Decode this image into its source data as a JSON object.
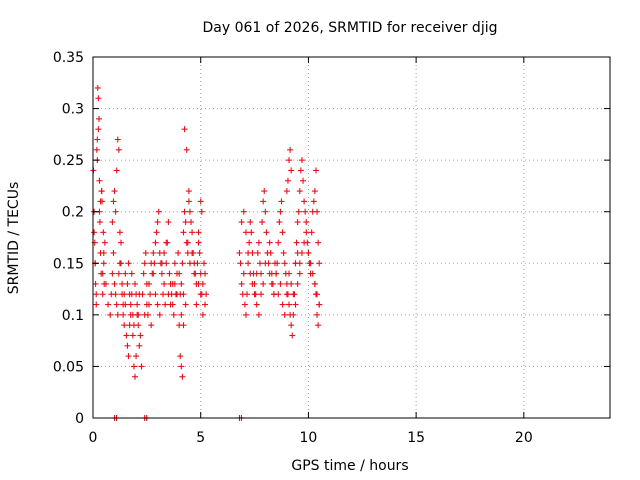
{
  "chart_data": {
    "type": "scatter",
    "title": "Day 061 of 2026, SRMTID for receiver djig",
    "xlabel": "GPS time / hours",
    "ylabel": "SRMTID / TECUs",
    "xlim": [
      0,
      24
    ],
    "ylim": [
      0,
      0.35
    ],
    "x_ticks": [
      0,
      5,
      10,
      15,
      20
    ],
    "y_ticks": [
      0,
      0.05,
      0.1,
      0.15,
      0.2,
      0.25,
      0.3,
      0.35
    ],
    "x_tick_labels": [
      "0",
      "5",
      "10",
      "15",
      "20"
    ],
    "y_tick_labels": [
      "0",
      "0.05",
      "0.1",
      "0.15",
      "0.2",
      "0.25",
      "0.3",
      "0.35"
    ],
    "grid": true,
    "marker": "plus",
    "color": "#e8101a",
    "series": [
      {
        "x": [
          0.02,
          0.05,
          0.08,
          0.1,
          0.12,
          0.15,
          0.18,
          0.2,
          0.22,
          0.25,
          0.28,
          0.3,
          0.32,
          0.35,
          0.38,
          0.4,
          0.42,
          0.45,
          0.48,
          0.5,
          0.52,
          0.55,
          0.05,
          0.1,
          0.15,
          0.2,
          0.25,
          0.3,
          0.35,
          0.4,
          0.45,
          0.5,
          0.6,
          0.7,
          0.8,
          0.85,
          0.9,
          0.95,
          1.0,
          1.05,
          1.1,
          1.15,
          1.2,
          1.25,
          1.3,
          1.35,
          1.4,
          1.45,
          1.5,
          0.9,
          0.95,
          1.0,
          1.05,
          1.1,
          1.15,
          1.2,
          1.25,
          1.3,
          1.35,
          1.4,
          1.45,
          1.5,
          1.55,
          1.6,
          1.65,
          1.7,
          1.75,
          1.8,
          1.85,
          1.9,
          1.95,
          2.0,
          2.05,
          2.1,
          2.15,
          2.2,
          2.25,
          1.6,
          1.65,
          1.7,
          1.75,
          1.8,
          1.85,
          1.9,
          1.95,
          2.0,
          2.05,
          2.1,
          2.15,
          2.3,
          2.35,
          2.4,
          2.45,
          2.5,
          2.55,
          2.6,
          2.65,
          2.7,
          2.75,
          2.8,
          2.85,
          2.9,
          2.95,
          3.0,
          3.05,
          3.1,
          3.15,
          3.2,
          3.25,
          3.3,
          3.35,
          3.4,
          3.45,
          3.5,
          3.55,
          3.6,
          3.65,
          3.7,
          3.75,
          3.8,
          3.85,
          3.9,
          3.95,
          2.4,
          2.5,
          2.6,
          2.7,
          2.8,
          2.9,
          3.0,
          3.1,
          3.2,
          3.3,
          3.4,
          3.5,
          3.6,
          3.7,
          3.8,
          3.9,
          4.0,
          4.05,
          4.1,
          4.15,
          4.2,
          4.25,
          4.3,
          4.35,
          4.4,
          4.45,
          4.5,
          4.55,
          4.6,
          4.65,
          4.7,
          4.75,
          4.8,
          4.85,
          4.9,
          4.95,
          5.0,
          5.05,
          5.1,
          5.15,
          5.2,
          5.25,
          4.0,
          4.1,
          4.2,
          4.3,
          4.4,
          4.5,
          4.6,
          4.7,
          4.8,
          4.9,
          5.0,
          5.1,
          5.2,
          4.05,
          4.1,
          4.15,
          4.2,
          4.25,
          4.35,
          4.45,
          4.9,
          5.0,
          5.05,
          6.8,
          6.85,
          6.9,
          6.95,
          7.0,
          7.05,
          7.1,
          7.15,
          7.2,
          7.25,
          7.3,
          7.35,
          7.4,
          7.45,
          7.5,
          7.55,
          7.6,
          7.65,
          7.7,
          7.75,
          7.8,
          7.85,
          7.9,
          7.95,
          8.0,
          8.05,
          8.1,
          8.15,
          8.2,
          8.25,
          8.3,
          8.35,
          8.4,
          8.45,
          8.5,
          6.9,
          7.0,
          7.1,
          7.2,
          7.3,
          7.4,
          7.5,
          7.6,
          7.7,
          7.8,
          7.9,
          8.0,
          8.1,
          8.2,
          8.3,
          8.4,
          8.5,
          8.55,
          8.6,
          8.65,
          8.7,
          8.75,
          8.8,
          8.85,
          8.9,
          8.95,
          9.0,
          9.05,
          9.1,
          9.15,
          9.2,
          9.25,
          9.3,
          9.35,
          9.4,
          9.45,
          9.5,
          9.55,
          9.6,
          9.65,
          9.7,
          9.75,
          9.8,
          9.85,
          9.9,
          9.95,
          10.0,
          10.05,
          10.1,
          10.15,
          10.2,
          10.25,
          10.3,
          10.35,
          10.4,
          10.45,
          10.5,
          8.6,
          8.7,
          8.8,
          8.9,
          9.0,
          9.1,
          9.2,
          9.3,
          9.4,
          9.5,
          9.6,
          9.7,
          9.8,
          9.9,
          10.0,
          10.1,
          10.2,
          10.3,
          10.4,
          10.5,
          9.0,
          9.05,
          9.1,
          9.15,
          9.2,
          9.4,
          9.5,
          9.6,
          10.3,
          10.35,
          10.4,
          10.45,
          10.5
        ],
        "y": [
          0.24,
          0.2,
          0.17,
          0.15,
          0.13,
          0.11,
          0.26,
          0.27,
          0.32,
          0.31,
          0.29,
          0.23,
          0.19,
          0.16,
          0.14,
          0.22,
          0.21,
          0.12,
          0.18,
          0.15,
          0.13,
          0.17,
          0.18,
          0.15,
          0.12,
          0.25,
          0.28,
          0.2,
          0.21,
          0.22,
          0.14,
          0.16,
          0.13,
          0.11,
          0.1,
          0.12,
          0.14,
          0.16,
          0.13,
          0.12,
          0.11,
          0.1,
          0.14,
          0.15,
          0.17,
          0.13,
          0.11,
          0.12,
          0.14,
          0.19,
          0.21,
          0.22,
          0.2,
          0.24,
          0.27,
          0.26,
          0.18,
          0.15,
          0.12,
          0.1,
          0.09,
          0.11,
          0.08,
          0.07,
          0.06,
          0.09,
          0.1,
          0.12,
          0.08,
          0.05,
          0.04,
          0.06,
          0.1,
          0.09,
          0.07,
          0.08,
          0.05,
          0.13,
          0.15,
          0.12,
          0.11,
          0.14,
          0.1,
          0.09,
          0.13,
          0.12,
          0.11,
          0.1,
          0.12,
          0.12,
          0.14,
          0.15,
          0.16,
          0.13,
          0.1,
          0.11,
          0.12,
          0.09,
          0.14,
          0.16,
          0.15,
          0.17,
          0.18,
          0.19,
          0.2,
          0.16,
          0.15,
          0.14,
          0.12,
          0.13,
          0.11,
          0.15,
          0.17,
          0.19,
          0.14,
          0.13,
          0.12,
          0.11,
          0.1,
          0.13,
          0.12,
          0.14,
          0.16,
          0.1,
          0.11,
          0.13,
          0.15,
          0.14,
          0.12,
          0.11,
          0.1,
          0.15,
          0.16,
          0.17,
          0.12,
          0.11,
          0.13,
          0.15,
          0.12,
          0.14,
          0.12,
          0.13,
          0.15,
          0.18,
          0.2,
          0.19,
          0.17,
          0.16,
          0.21,
          0.2,
          0.19,
          0.18,
          0.16,
          0.15,
          0.14,
          0.13,
          0.15,
          0.17,
          0.16,
          0.14,
          0.12,
          0.13,
          0.15,
          0.14,
          0.12,
          0.09,
          0.1,
          0.12,
          0.11,
          0.17,
          0.15,
          0.16,
          0.14,
          0.11,
          0.13,
          0.12,
          0.1,
          0.11,
          0.06,
          0.05,
          0.04,
          0.09,
          0.28,
          0.26,
          0.22,
          0.18,
          0.21,
          0.2,
          0.16,
          0.15,
          0.13,
          0.12,
          0.14,
          0.11,
          0.1,
          0.12,
          0.15,
          0.17,
          0.19,
          0.18,
          0.16,
          0.14,
          0.13,
          0.12,
          0.14,
          0.16,
          0.17,
          0.15,
          0.14,
          0.19,
          0.21,
          0.22,
          0.2,
          0.18,
          0.16,
          0.15,
          0.17,
          0.16,
          0.14,
          0.13,
          0.12,
          0.15,
          0.14,
          0.19,
          0.2,
          0.18,
          0.16,
          0.14,
          0.13,
          0.12,
          0.11,
          0.1,
          0.12,
          0.13,
          0.15,
          0.16,
          0.14,
          0.13,
          0.12,
          0.14,
          0.15,
          0.17,
          0.19,
          0.2,
          0.21,
          0.18,
          0.16,
          0.15,
          0.14,
          0.13,
          0.12,
          0.11,
          0.1,
          0.09,
          0.08,
          0.1,
          0.12,
          0.15,
          0.17,
          0.19,
          0.2,
          0.22,
          0.24,
          0.25,
          0.23,
          0.21,
          0.2,
          0.19,
          0.17,
          0.16,
          0.15,
          0.14,
          0.18,
          0.2,
          0.21,
          0.22,
          0.24,
          0.2,
          0.17,
          0.15,
          0.12,
          0.13,
          0.11,
          0.1,
          0.12,
          0.14,
          0.13,
          0.12,
          0.11,
          0.13,
          0.15,
          0.16,
          0.17,
          0.18,
          0.16,
          0.15,
          0.14,
          0.13,
          0.12,
          0.11,
          0.22,
          0.23,
          0.25,
          0.26,
          0.24,
          0.15,
          0.16,
          0.14,
          0.13,
          0.12,
          0.1,
          0.09,
          0.11
        ]
      }
    ],
    "zero_markers_x": [
      1.0,
      2.4,
      6.8
    ]
  }
}
